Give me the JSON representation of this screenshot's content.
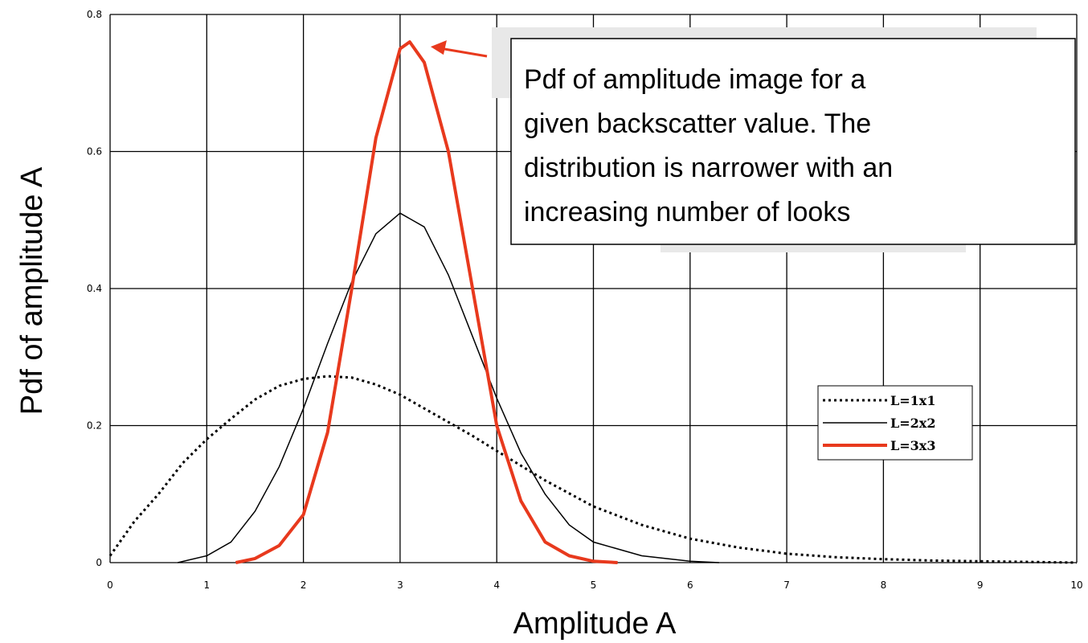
{
  "chart_data": {
    "type": "line",
    "title": "",
    "xlabel": "Amplitude A",
    "ylabel": "Pdf of amplitude A",
    "xlim": [
      0,
      10
    ],
    "ylim": [
      0,
      0.8
    ],
    "x_ticks": [
      "0",
      "1",
      "2",
      "3",
      "4",
      "5",
      "6",
      "7",
      "8",
      "9",
      "10"
    ],
    "y_ticks": [
      "0",
      "0.2",
      "0.4",
      "0.6",
      "0.8"
    ],
    "grid": true,
    "legend_position": "right",
    "series": [
      {
        "name": "L=1x1",
        "color": "#000000",
        "style": "dotted",
        "x": [
          0,
          0.25,
          0.5,
          0.75,
          1,
          1.25,
          1.5,
          1.75,
          2,
          2.25,
          2.5,
          2.75,
          3,
          3.25,
          3.5,
          3.75,
          4,
          4.5,
          5,
          5.5,
          6,
          6.5,
          7,
          7.5,
          8,
          8.5,
          9,
          9.5,
          10
        ],
        "y": [
          0.01,
          0.06,
          0.1,
          0.145,
          0.18,
          0.21,
          0.238,
          0.258,
          0.268,
          0.272,
          0.27,
          0.26,
          0.245,
          0.225,
          0.205,
          0.185,
          0.163,
          0.12,
          0.082,
          0.055,
          0.035,
          0.022,
          0.013,
          0.008,
          0.005,
          0.003,
          0.002,
          0.001,
          0.0
        ]
      },
      {
        "name": "L=2x2",
        "color": "#000000",
        "style": "solid-thin",
        "x": [
          0.7,
          1,
          1.25,
          1.5,
          1.75,
          2,
          2.25,
          2.5,
          2.75,
          3,
          3.25,
          3.5,
          3.75,
          4,
          4.25,
          4.5,
          4.75,
          5,
          5.5,
          6,
          6.3
        ],
        "y": [
          0.0,
          0.01,
          0.03,
          0.075,
          0.14,
          0.225,
          0.32,
          0.41,
          0.48,
          0.51,
          0.49,
          0.42,
          0.33,
          0.24,
          0.16,
          0.1,
          0.055,
          0.03,
          0.01,
          0.002,
          0.0
        ]
      },
      {
        "name": "L=3x3",
        "color": "#e8391d",
        "style": "solid-thick",
        "x": [
          1.3,
          1.5,
          1.75,
          2,
          2.25,
          2.5,
          2.75,
          3,
          3.1,
          3.25,
          3.5,
          3.75,
          4,
          4.25,
          4.5,
          4.75,
          5,
          5.25
        ],
        "y": [
          0.0,
          0.006,
          0.025,
          0.07,
          0.19,
          0.4,
          0.62,
          0.75,
          0.76,
          0.73,
          0.6,
          0.4,
          0.2,
          0.09,
          0.03,
          0.01,
          0.002,
          0.0
        ]
      }
    ],
    "annotation": {
      "lines": [
        "Pdf of amplitude image for a",
        "given backscatter value. The",
        "distribution is narrower with an",
        "increasing number of looks"
      ],
      "arrow_target_x": 3.1,
      "arrow_target_y": 0.76,
      "arrow_color": "#e8391d"
    }
  }
}
